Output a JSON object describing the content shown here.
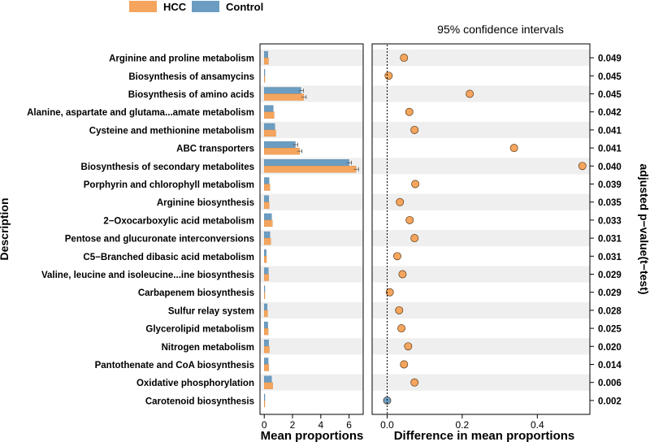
{
  "chart_data": {
    "type": "extended_error_bar",
    "legend": {
      "position": "top-left",
      "entries": [
        {
          "name": "HCC",
          "color": "#F5A55D"
        },
        {
          "name": "Control",
          "color": "#6B9DC2"
        }
      ]
    },
    "ylabel": "Description",
    "right_ylabel": "adjusted p−value(t−test)",
    "left_panel": {
      "xlabel": "Mean proportions",
      "xlim": [
        -0.3,
        7
      ],
      "ticks": [
        0,
        2,
        4,
        6
      ],
      "tick_labels": [
        "0",
        "2",
        "4",
        "6"
      ]
    },
    "right_panel": {
      "title": "95% confidence intervals",
      "xlabel": "Difference in mean proportions",
      "xlim": [
        -0.04,
        0.54
      ],
      "ticks": [
        0.0,
        0.2,
        0.4
      ],
      "tick_labels": [
        "0.0",
        "0.2",
        "0.4"
      ]
    },
    "series": [
      {
        "name": "HCC",
        "color": "#F5A55D"
      },
      {
        "name": "Control",
        "color": "#6B9DC2"
      }
    ],
    "categories": [
      "Arginine and proline metabolism",
      "Biosynthesis of ansamycins",
      "Biosynthesis of amino acids",
      "Alanine, aspartate and glutama...amate metabolism",
      "Cysteine and methionine metabolism",
      "ABC transporters",
      "Biosynthesis of secondary metabolites",
      "Porphyrin and chlorophyll metabolism",
      "Arginine biosynthesis",
      "2−Oxocarboxylic acid metabolism",
      "Pentose and glucuronate interconversions",
      "C5−Branched dibasic acid metabolism",
      "Valine, leucine and isoleucine...ine biosynthesis",
      "Carbapenem biosynthesis",
      "Sulfur relay system",
      "Glycerolipid metabolism",
      "Nitrogen metabolism",
      "Pantothenate and CoA biosynthesis",
      "Oxidative phosphorylation",
      "Carotenoid biosynthesis"
    ],
    "hcc": [
      0.3,
      0.02,
      2.8,
      0.7,
      0.82,
      2.5,
      6.5,
      0.4,
      0.35,
      0.58,
      0.46,
      0.16,
      0.32,
      0.04,
      0.24,
      0.28,
      0.36,
      0.32,
      0.6,
      0.01
    ],
    "control": [
      0.26,
      0.015,
      2.6,
      0.64,
      0.75,
      2.2,
      6.0,
      0.34,
      0.32,
      0.52,
      0.4,
      0.14,
      0.29,
      0.03,
      0.21,
      0.25,
      0.31,
      0.28,
      0.52,
      0.012
    ],
    "difference": [
      0.045,
      0.004,
      0.22,
      0.059,
      0.073,
      0.338,
      0.52,
      0.075,
      0.034,
      0.06,
      0.073,
      0.027,
      0.041,
      0.007,
      0.032,
      0.038,
      0.056,
      0.045,
      0.073,
      0.0
    ],
    "diff_higher_group": [
      "HCC",
      "HCC",
      "HCC",
      "HCC",
      "HCC",
      "HCC",
      "HCC",
      "HCC",
      "HCC",
      "HCC",
      "HCC",
      "HCC",
      "HCC",
      "HCC",
      "HCC",
      "HCC",
      "HCC",
      "HCC",
      "HCC",
      "Control"
    ],
    "p_values": [
      "0.049",
      "0.045",
      "0.045",
      "0.042",
      "0.041",
      "0.041",
      "0.040",
      "0.039",
      "0.035",
      "0.033",
      "0.031",
      "0.031",
      "0.029",
      "0.029",
      "0.028",
      "0.025",
      "0.020",
      "0.014",
      "0.006",
      "0.002"
    ]
  }
}
